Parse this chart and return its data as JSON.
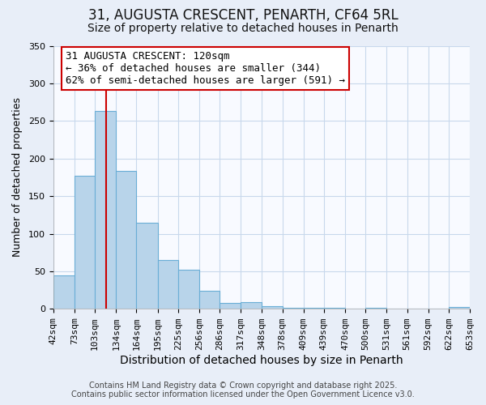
{
  "title": "31, AUGUSTA CRESCENT, PENARTH, CF64 5RL",
  "subtitle": "Size of property relative to detached houses in Penarth",
  "xlabel": "Distribution of detached houses by size in Penarth",
  "ylabel": "Number of detached properties",
  "bar_values": [
    45,
    177,
    263,
    184,
    115,
    65,
    52,
    24,
    8,
    9,
    4,
    1,
    1,
    1,
    0,
    1,
    0,
    0,
    0,
    2
  ],
  "bin_edges": [
    42,
    73,
    103,
    134,
    164,
    195,
    225,
    256,
    286,
    317,
    348,
    378,
    409,
    439,
    470,
    500,
    531,
    561,
    592,
    622,
    653
  ],
  "tick_labels": [
    "42sqm",
    "73sqm",
    "103sqm",
    "134sqm",
    "164sqm",
    "195sqm",
    "225sqm",
    "256sqm",
    "286sqm",
    "317sqm",
    "348sqm",
    "378sqm",
    "409sqm",
    "439sqm",
    "470sqm",
    "500sqm",
    "531sqm",
    "561sqm",
    "592sqm",
    "622sqm",
    "653sqm"
  ],
  "bar_color": "#b8d4ea",
  "bar_edge_color": "#6aaed6",
  "vline_x": 120,
  "vline_color": "#cc0000",
  "ylim": [
    0,
    350
  ],
  "yticks": [
    0,
    50,
    100,
    150,
    200,
    250,
    300,
    350
  ],
  "annotation_title": "31 AUGUSTA CRESCENT: 120sqm",
  "annotation_line1": "← 36% of detached houses are smaller (344)",
  "annotation_line2": "62% of semi-detached houses are larger (591) →",
  "footer1": "Contains HM Land Registry data © Crown copyright and database right 2025.",
  "footer2": "Contains public sector information licensed under the Open Government Licence v3.0.",
  "bg_color": "#e8eef8",
  "plot_bg_color": "#f8faff",
  "title_fontsize": 12,
  "subtitle_fontsize": 10,
  "xlabel_fontsize": 10,
  "ylabel_fontsize": 9,
  "tick_fontsize": 8,
  "annotation_fontsize": 9,
  "footer_fontsize": 7,
  "annotation_box_color": "#ffffff",
  "annotation_box_edge": "#cc0000",
  "grid_color": "#c8d8ec"
}
